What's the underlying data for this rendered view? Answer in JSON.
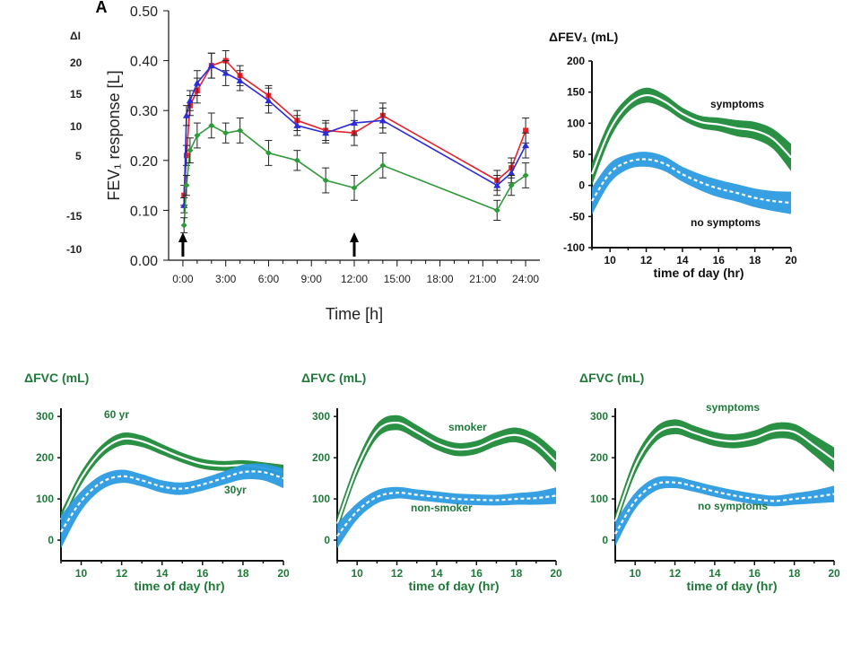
{
  "fragments": {
    "y_title": "ΔI",
    "ticks": [
      "20",
      "15",
      "10",
      "5",
      "-15",
      "-10"
    ]
  },
  "colors": {
    "red": "#e8202a",
    "blue": "#2b2bd8",
    "green": "#2f9a3a",
    "band_green": "#1e8a3a",
    "band_blue": "#2b9be0",
    "mean_line": "#ffffff",
    "label_green": "#1f7a3a"
  },
  "chart_data": [
    {
      "id": "A",
      "type": "line",
      "panel_label": "A",
      "ylabel": "FEV₁ response [L]",
      "xlabel": "Time [h]",
      "xlim": [
        -1,
        25
      ],
      "ylim": [
        0,
        0.5
      ],
      "xticks": [
        0,
        3,
        6,
        9,
        12,
        15,
        18,
        21,
        24
      ],
      "xtick_labels": [
        "0:00",
        "3:00",
        "6:00",
        "9:00",
        "12:00",
        "15:00",
        "18:00",
        "21:00",
        "24:00"
      ],
      "yticks": [
        0,
        0.1,
        0.2,
        0.3,
        0.4,
        0.5
      ],
      "ytick_labels": [
        "0.00",
        "0.10",
        "0.20",
        "0.30",
        "0.40",
        "0.50"
      ],
      "arrows_at": [
        0,
        12
      ],
      "series": [
        {
          "color": "red",
          "marker": "square",
          "x": [
            0.08,
            0.25,
            0.5,
            1,
            2,
            3,
            4,
            6,
            8,
            10,
            12,
            14,
            22,
            23,
            24
          ],
          "y": [
            0.13,
            0.21,
            0.31,
            0.34,
            0.39,
            0.4,
            0.37,
            0.33,
            0.28,
            0.26,
            0.255,
            0.29,
            0.16,
            0.185,
            0.26
          ],
          "err": [
            0.02,
            0.02,
            0.02,
            0.025,
            0.025,
            0.02,
            0.02,
            0.02,
            0.02,
            0.02,
            0.025,
            0.025,
            0.02,
            0.02,
            0.025
          ]
        },
        {
          "color": "blue",
          "marker": "triangle",
          "x": [
            0.08,
            0.25,
            0.5,
            1,
            2,
            3,
            4,
            6,
            8,
            10,
            12,
            14,
            22,
            23,
            24
          ],
          "y": [
            0.11,
            0.29,
            0.32,
            0.355,
            0.39,
            0.375,
            0.36,
            0.32,
            0.27,
            0.255,
            0.275,
            0.28,
            0.15,
            0.175,
            0.23
          ],
          "err": [
            0.015,
            0.02,
            0.02,
            0.025,
            0.025,
            0.025,
            0.02,
            0.025,
            0.02,
            0.02,
            0.025,
            0.025,
            0.02,
            0.02,
            0.025
          ]
        },
        {
          "color": "green",
          "marker": "diamond",
          "x": [
            0.08,
            0.25,
            0.5,
            1,
            2,
            3,
            4,
            6,
            8,
            10,
            12,
            14,
            22,
            23,
            24
          ],
          "y": [
            0.07,
            0.15,
            0.22,
            0.25,
            0.27,
            0.255,
            0.26,
            0.215,
            0.2,
            0.16,
            0.145,
            0.19,
            0.1,
            0.15,
            0.17
          ],
          "err": [
            0.015,
            0.02,
            0.025,
            0.025,
            0.025,
            0.02,
            0.025,
            0.025,
            0.02,
            0.025,
            0.025,
            0.025,
            0.02,
            0.02,
            0.025
          ]
        }
      ]
    },
    {
      "id": "fev1",
      "type": "area",
      "title": "ΔFEV₁ (mL)",
      "xlabel": "time of day (hr)",
      "xlim": [
        9,
        20
      ],
      "ylim": [
        -100,
        200
      ],
      "xticks": [
        10,
        12,
        14,
        16,
        18,
        20
      ],
      "xtick_labels": [
        "10",
        "12",
        "14",
        "16",
        "18",
        "20"
      ],
      "yticks": [
        -100,
        -50,
        0,
        50,
        100,
        150,
        200
      ],
      "ytick_labels": [
        "-100",
        "-50",
        "0",
        "50",
        "100",
        "150",
        "200"
      ],
      "tick_style": "dark",
      "series": [
        {
          "name": "symptoms",
          "band": "green",
          "line": "solid",
          "x": [
            9,
            10,
            11,
            12,
            13,
            14,
            15,
            16,
            17,
            18,
            19,
            20
          ],
          "mean": [
            18,
            90,
            130,
            145,
            135,
            115,
            102,
            98,
            92,
            88,
            75,
            45
          ],
          "half_width": [
            18,
            15,
            12,
            12,
            11,
            10,
            10,
            11,
            13,
            14,
            16,
            22
          ]
        },
        {
          "name": "no symptoms",
          "band": "blue",
          "line": "dashed",
          "x": [
            9,
            10,
            11,
            12,
            13,
            14,
            15,
            16,
            17,
            18,
            19,
            20
          ],
          "mean": [
            -25,
            20,
            38,
            42,
            35,
            18,
            5,
            -5,
            -12,
            -20,
            -25,
            -28
          ],
          "half_width": [
            22,
            16,
            12,
            12,
            12,
            12,
            13,
            14,
            14,
            15,
            16,
            18
          ]
        }
      ],
      "annotations": [
        "symptoms",
        "no symptoms"
      ]
    },
    {
      "id": "fvc_age",
      "type": "area",
      "title": "ΔFVC (mL)",
      "xlabel": "time of day (hr)",
      "xlim": [
        9,
        20
      ],
      "ylim": [
        -50,
        320
      ],
      "xticks": [
        10,
        12,
        14,
        16,
        18,
        20
      ],
      "xtick_labels": [
        "10",
        "12",
        "14",
        "16",
        "18",
        "20"
      ],
      "yticks": [
        0,
        100,
        200,
        300
      ],
      "ytick_labels": [
        "0",
        "100",
        "200",
        "300"
      ],
      "tick_style": "green",
      "series": [
        {
          "name": "60 yr",
          "band": "green",
          "line": "solid",
          "x": [
            9,
            10,
            11,
            12,
            13,
            14,
            15,
            16,
            17,
            18,
            19,
            20
          ],
          "mean": [
            50,
            150,
            215,
            245,
            240,
            220,
            200,
            185,
            180,
            182,
            175,
            165
          ],
          "half_width": [
            18,
            16,
            15,
            15,
            14,
            13,
            12,
            12,
            12,
            12,
            14,
            18
          ]
        },
        {
          "name": "30yr",
          "band": "blue",
          "line": "dashed",
          "x": [
            9,
            10,
            11,
            12,
            13,
            14,
            15,
            16,
            17,
            18,
            19,
            20
          ],
          "mean": [
            20,
            95,
            140,
            155,
            145,
            130,
            125,
            135,
            150,
            165,
            165,
            150
          ],
          "half_width": [
            40,
            24,
            18,
            16,
            15,
            15,
            15,
            15,
            16,
            18,
            20,
            24
          ]
        }
      ],
      "annotations": [
        "60 yr",
        "30yr"
      ]
    },
    {
      "id": "fvc_smoke",
      "type": "area",
      "title": "ΔFVC (mL)",
      "xlabel": "time of day (hr)",
      "xlim": [
        9,
        20
      ],
      "ylim": [
        -50,
        320
      ],
      "xticks": [
        10,
        12,
        14,
        16,
        18,
        20
      ],
      "xtick_labels": [
        "10",
        "12",
        "14",
        "16",
        "18",
        "20"
      ],
      "yticks": [
        0,
        100,
        200,
        300
      ],
      "ytick_labels": [
        "0",
        "100",
        "200",
        "300"
      ],
      "tick_style": "green",
      "series": [
        {
          "name": "smoker",
          "band": "green",
          "line": "solid",
          "x": [
            9,
            10,
            11,
            12,
            13,
            14,
            15,
            16,
            17,
            18,
            19,
            20
          ],
          "mean": [
            40,
            175,
            265,
            285,
            262,
            235,
            220,
            225,
            245,
            255,
            235,
            190
          ],
          "half_width": [
            20,
            18,
            18,
            18,
            17,
            16,
            16,
            16,
            17,
            18,
            20,
            25
          ]
        },
        {
          "name": "non-smoker",
          "band": "blue",
          "line": "dashed",
          "x": [
            9,
            10,
            11,
            12,
            13,
            14,
            15,
            16,
            17,
            18,
            19,
            20
          ],
          "mean": [
            10,
            70,
            105,
            115,
            110,
            105,
            100,
            98,
            97,
            100,
            102,
            108
          ],
          "half_width": [
            30,
            20,
            16,
            14,
            13,
            13,
            13,
            13,
            13,
            14,
            16,
            20
          ]
        }
      ],
      "annotations": [
        "smoker",
        "non-smoker"
      ]
    },
    {
      "id": "fvc_sympt",
      "type": "area",
      "title": "ΔFVC (mL)",
      "xlabel": "time of day (hr)",
      "xlim": [
        9,
        20
      ],
      "ylim": [
        -50,
        320
      ],
      "xticks": [
        10,
        12,
        14,
        16,
        18,
        20
      ],
      "xtick_labels": [
        "10",
        "12",
        "14",
        "16",
        "18",
        "20"
      ],
      "yticks": [
        0,
        100,
        200,
        300
      ],
      "ytick_labels": [
        "0",
        "100",
        "200",
        "300"
      ],
      "tick_style": "green",
      "series": [
        {
          "name": "symptoms",
          "band": "green",
          "line": "solid",
          "x": [
            9,
            10,
            11,
            12,
            13,
            14,
            15,
            16,
            17,
            18,
            19,
            20
          ],
          "mean": [
            45,
            180,
            255,
            275,
            260,
            245,
            240,
            248,
            265,
            262,
            230,
            195
          ],
          "half_width": [
            20,
            20,
            18,
            18,
            17,
            17,
            17,
            18,
            19,
            20,
            24,
            30
          ]
        },
        {
          "name": "no symptoms",
          "band": "blue",
          "line": "dashed",
          "x": [
            9,
            10,
            11,
            12,
            13,
            14,
            15,
            16,
            17,
            18,
            19,
            20
          ],
          "mean": [
            15,
            95,
            135,
            140,
            130,
            118,
            108,
            100,
            95,
            100,
            105,
            112
          ],
          "half_width": [
            30,
            20,
            16,
            14,
            13,
            13,
            13,
            13,
            13,
            14,
            16,
            20
          ]
        }
      ],
      "annotations": [
        "symptoms",
        "no symptoms"
      ]
    }
  ]
}
